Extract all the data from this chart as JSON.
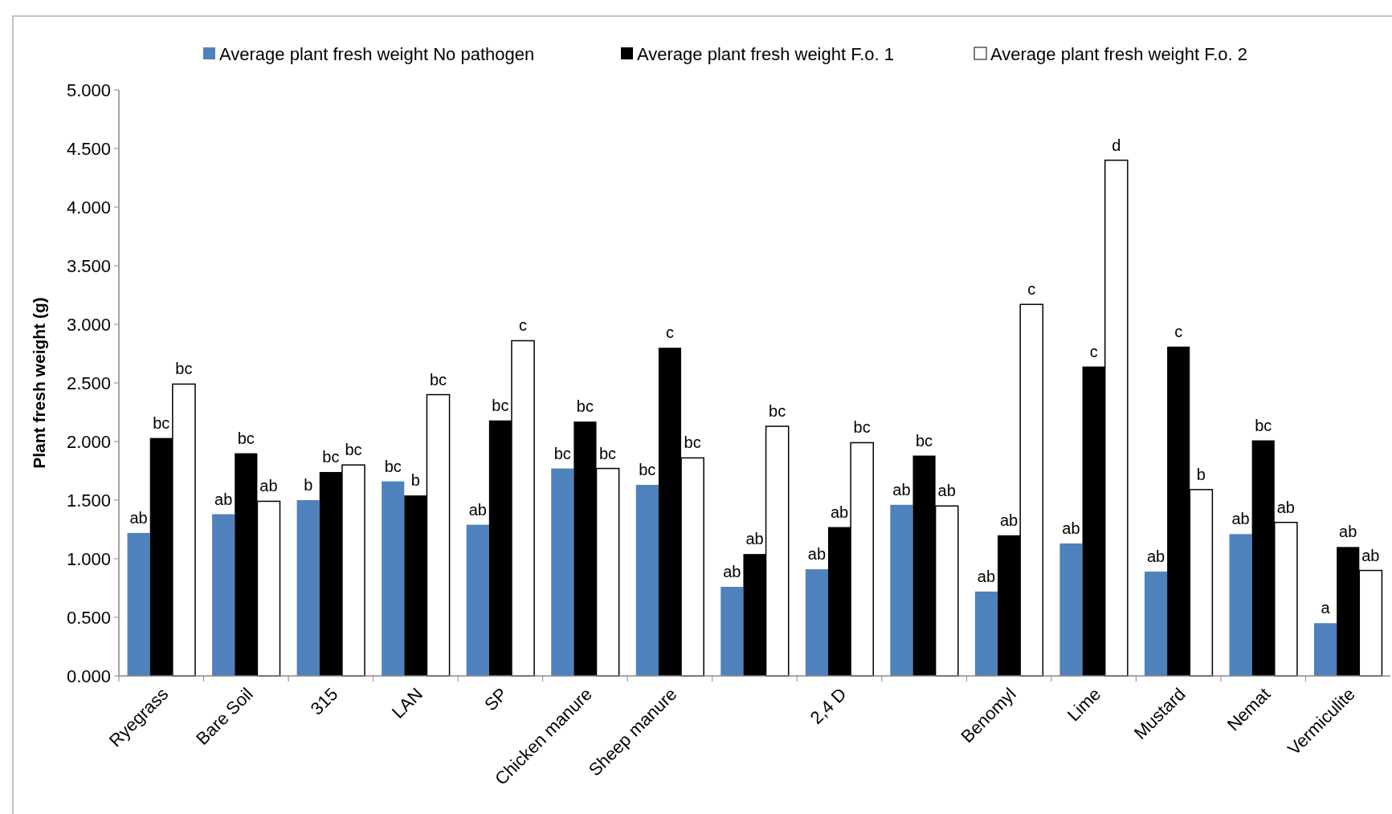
{
  "chart_data": {
    "type": "bar",
    "ylabel": "Plant fresh weight (g)",
    "categories": [
      "Ryegrass",
      "Bare Soil",
      "315",
      "LAN",
      "SP",
      "Chicken manure",
      "Sheep manure",
      null,
      "2,4 D",
      null,
      "Benomyl",
      "Lime",
      "Mustard",
      "Nemat",
      "Vermiculite"
    ],
    "series": [
      {
        "name": "Average plant fresh weight No pathogen",
        "color": "#4f81bd",
        "values": [
          1.22,
          1.38,
          1.5,
          1.66,
          1.29,
          1.77,
          1.63,
          0.76,
          0.91,
          1.46,
          0.72,
          1.13,
          0.89,
          1.21,
          0.45
        ],
        "value_labels": [
          "ab",
          "ab",
          "b",
          "bc",
          "ab",
          "bc",
          "bc",
          "ab",
          "ab",
          "ab",
          "ab",
          "ab",
          "ab",
          "ab",
          "a"
        ]
      },
      {
        "name": "Average plant fresh weight F.o. 1",
        "color": "#000000",
        "values": [
          2.03,
          1.9,
          1.74,
          1.54,
          2.18,
          2.17,
          2.8,
          1.04,
          1.27,
          1.88,
          1.2,
          2.64,
          2.81,
          2.01,
          1.1
        ],
        "value_labels": [
          "bc",
          "bc",
          "bc",
          "b",
          "bc",
          "bc",
          "c",
          "ab",
          "ab",
          "bc",
          "ab",
          "c",
          "c",
          "bc",
          "ab"
        ]
      },
      {
        "name": "Average plant fresh weight F.o. 2",
        "color": "#ffffff",
        "values": [
          2.49,
          1.49,
          1.8,
          2.4,
          2.86,
          1.77,
          1.86,
          2.13,
          1.99,
          1.45,
          3.17,
          4.4,
          1.59,
          1.31,
          0.9
        ],
        "value_labels": [
          "bc",
          "ab",
          "bc",
          "bc",
          "c",
          "bc",
          "bc",
          "bc",
          "bc",
          "ab",
          "c",
          "d",
          "b",
          "ab",
          "ab"
        ]
      }
    ],
    "ylim": [
      0,
      5
    ],
    "yticks": [
      {
        "value": 0,
        "label": "0.000"
      },
      {
        "value": 0.5,
        "label": "0.500"
      },
      {
        "value": 1,
        "label": "1.000"
      },
      {
        "value": 1.5,
        "label": "1.500"
      },
      {
        "value": 2,
        "label": "2.000"
      },
      {
        "value": 2.5,
        "label": "2.500"
      },
      {
        "value": 3,
        "label": "3.000"
      },
      {
        "value": 3.5,
        "label": "3.500"
      },
      {
        "value": 4,
        "label": "4.000"
      },
      {
        "value": 4.5,
        "label": "4.500"
      },
      {
        "value": 5,
        "label": "5.000"
      }
    ],
    "grid": false,
    "legend": "top"
  }
}
